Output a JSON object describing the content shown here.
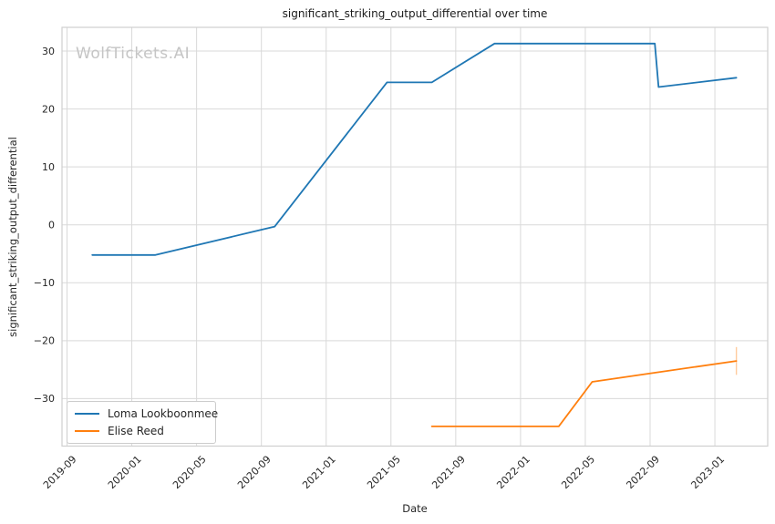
{
  "chart_data": {
    "type": "line",
    "title": "significant_striking_output_differential over time",
    "xlabel": "Date",
    "ylabel": "significant_striking_output_differential",
    "watermark": "WolfTickets.AI",
    "grid": true,
    "legend_position": "lower left",
    "x_tick_labels": [
      "2019-09",
      "2020-01",
      "2020-05",
      "2020-09",
      "2021-01",
      "2021-05",
      "2021-09",
      "2022-01",
      "2022-05",
      "2022-09",
      "2023-01"
    ],
    "y_ticks": [
      30,
      20,
      10,
      0,
      -10,
      -20,
      -30
    ],
    "xlim": [
      "2019-08-22",
      "2023-04-09"
    ],
    "ylim": [
      -38.2,
      34.1
    ],
    "grid_color": "#d9d9d9",
    "spine_color": "#cfcfcf",
    "series": [
      {
        "name": "Loma Lookboonmee",
        "color": "#1f77b4",
        "points": [
          [
            "2019-10-18",
            -5.2
          ],
          [
            "2020-02-15",
            -5.2
          ],
          [
            "2020-09-26",
            -0.3
          ],
          [
            "2021-04-24",
            24.6
          ],
          [
            "2021-07-17",
            24.6
          ],
          [
            "2021-11-13",
            31.3
          ],
          [
            "2022-09-10",
            31.3
          ],
          [
            "2022-09-17",
            23.8
          ],
          [
            "2023-02-11",
            25.4
          ]
        ]
      },
      {
        "name": "Elise Reed",
        "color": "#ff7f0e",
        "points": [
          [
            "2021-07-17",
            -34.8
          ],
          [
            "2022-03-12",
            -34.8
          ],
          [
            "2022-05-14",
            -27.1
          ],
          [
            "2022-08-27",
            -25.7
          ],
          [
            "2023-02-11",
            -23.5
          ]
        ],
        "errorbar_last": {
          "low": -25.9,
          "high": -21.1
        }
      }
    ]
  }
}
